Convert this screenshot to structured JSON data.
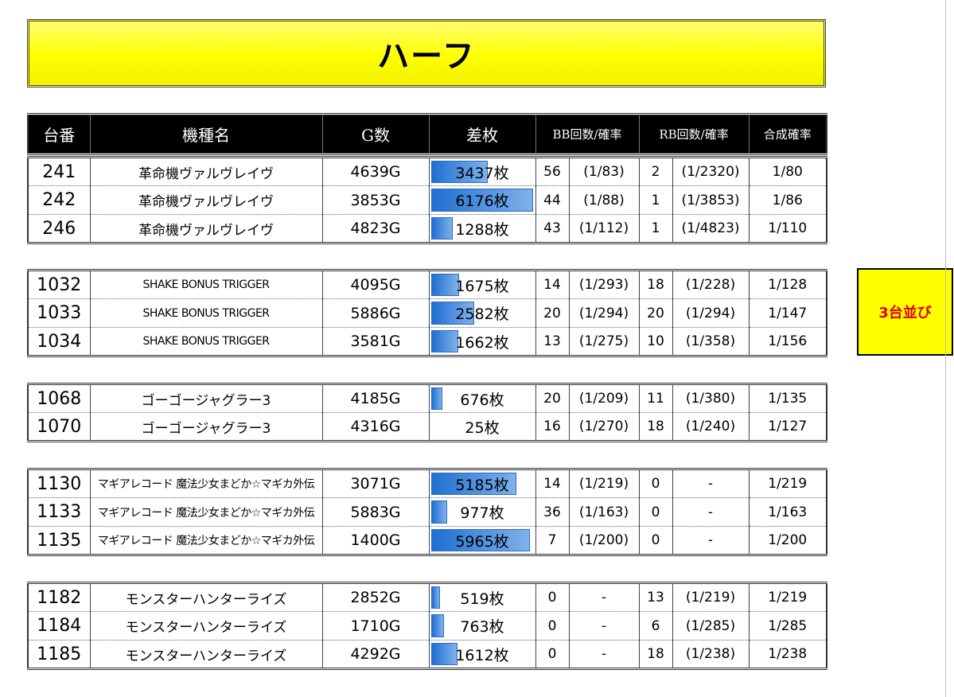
{
  "title": "ハーフ",
  "badge": "3台並び",
  "headers": [
    "台番",
    "機種名",
    "G数",
    "差枚",
    "BB回数/確率",
    "RB回数/確率",
    "合成確率"
  ],
  "diff_max": 6176,
  "groups": [
    {
      "rows": [
        {
          "num": "241",
          "name": "革命機ヴァルヴレイヴ",
          "g": "4639G",
          "diff": 3437,
          "diff_text": "3437枚",
          "bb": "56",
          "bbp": "(1/83)",
          "rb": "2",
          "rbp": "(1/2320)",
          "total": "1/80"
        },
        {
          "num": "242",
          "name": "革命機ヴァルヴレイヴ",
          "g": "3853G",
          "diff": 6176,
          "diff_text": "6176枚",
          "bb": "44",
          "bbp": "(1/88)",
          "rb": "1",
          "rbp": "(1/3853)",
          "total": "1/86"
        },
        {
          "num": "246",
          "name": "革命機ヴァルヴレイヴ",
          "g": "4823G",
          "diff": 1288,
          "diff_text": "1288枚",
          "bb": "43",
          "bbp": "(1/112)",
          "rb": "1",
          "rbp": "(1/4823)",
          "total": "1/110"
        }
      ]
    },
    {
      "rows": [
        {
          "num": "1032",
          "name": "SHAKE BONUS TRIGGER",
          "g": "4095G",
          "diff": 1675,
          "diff_text": "1675枚",
          "bb": "14",
          "bbp": "(1/293)",
          "rb": "18",
          "rbp": "(1/228)",
          "total": "1/128"
        },
        {
          "num": "1033",
          "name": "SHAKE BONUS TRIGGER",
          "g": "5886G",
          "diff": 2582,
          "diff_text": "2582枚",
          "bb": "20",
          "bbp": "(1/294)",
          "rb": "20",
          "rbp": "(1/294)",
          "total": "1/147"
        },
        {
          "num": "1034",
          "name": "SHAKE BONUS TRIGGER",
          "g": "3581G",
          "diff": 1662,
          "diff_text": "1662枚",
          "bb": "13",
          "bbp": "(1/275)",
          "rb": "10",
          "rbp": "(1/358)",
          "total": "1/156"
        }
      ]
    },
    {
      "rows": [
        {
          "num": "1068",
          "name": "ゴーゴージャグラー3",
          "g": "4185G",
          "diff": 676,
          "diff_text": "676枚",
          "bb": "20",
          "bbp": "(1/209)",
          "rb": "11",
          "rbp": "(1/380)",
          "total": "1/135"
        },
        {
          "num": "1070",
          "name": "ゴーゴージャグラー3",
          "g": "4316G",
          "diff": 25,
          "diff_text": "25枚",
          "bb": "16",
          "bbp": "(1/270)",
          "rb": "18",
          "rbp": "(1/240)",
          "total": "1/127"
        }
      ]
    },
    {
      "rows": [
        {
          "num": "1130",
          "name": "マギアレコード 魔法少女まどか☆マギカ外伝",
          "g": "3071G",
          "diff": 5185,
          "diff_text": "5185枚",
          "bb": "14",
          "bbp": "(1/219)",
          "rb": "0",
          "rbp": "-",
          "total": "1/219"
        },
        {
          "num": "1133",
          "name": "マギアレコード 魔法少女まどか☆マギカ外伝",
          "g": "5883G",
          "diff": 977,
          "diff_text": "977枚",
          "bb": "36",
          "bbp": "(1/163)",
          "rb": "0",
          "rbp": "-",
          "total": "1/163"
        },
        {
          "num": "1135",
          "name": "マギアレコード 魔法少女まどか☆マギカ外伝",
          "g": "1400G",
          "diff": 5965,
          "diff_text": "5965枚",
          "bb": "7",
          "bbp": "(1/200)",
          "rb": "0",
          "rbp": "-",
          "total": "1/200"
        }
      ]
    },
    {
      "rows": [
        {
          "num": "1182",
          "name": "モンスターハンターライズ",
          "g": "2852G",
          "diff": 519,
          "diff_text": "519枚",
          "bb": "0",
          "bbp": "-",
          "rb": "13",
          "rbp": "(1/219)",
          "total": "1/219"
        },
        {
          "num": "1184",
          "name": "モンスターハンターライズ",
          "g": "1710G",
          "diff": 763,
          "diff_text": "763枚",
          "bb": "0",
          "bbp": "-",
          "rb": "6",
          "rbp": "(1/285)",
          "total": "1/285"
        },
        {
          "num": "1185",
          "name": "モンスターハンターライズ",
          "g": "4292G",
          "diff": 1612,
          "diff_text": "1612枚",
          "bb": "0",
          "bbp": "-",
          "rb": "18",
          "rbp": "(1/238)",
          "total": "1/238"
        }
      ]
    }
  ]
}
